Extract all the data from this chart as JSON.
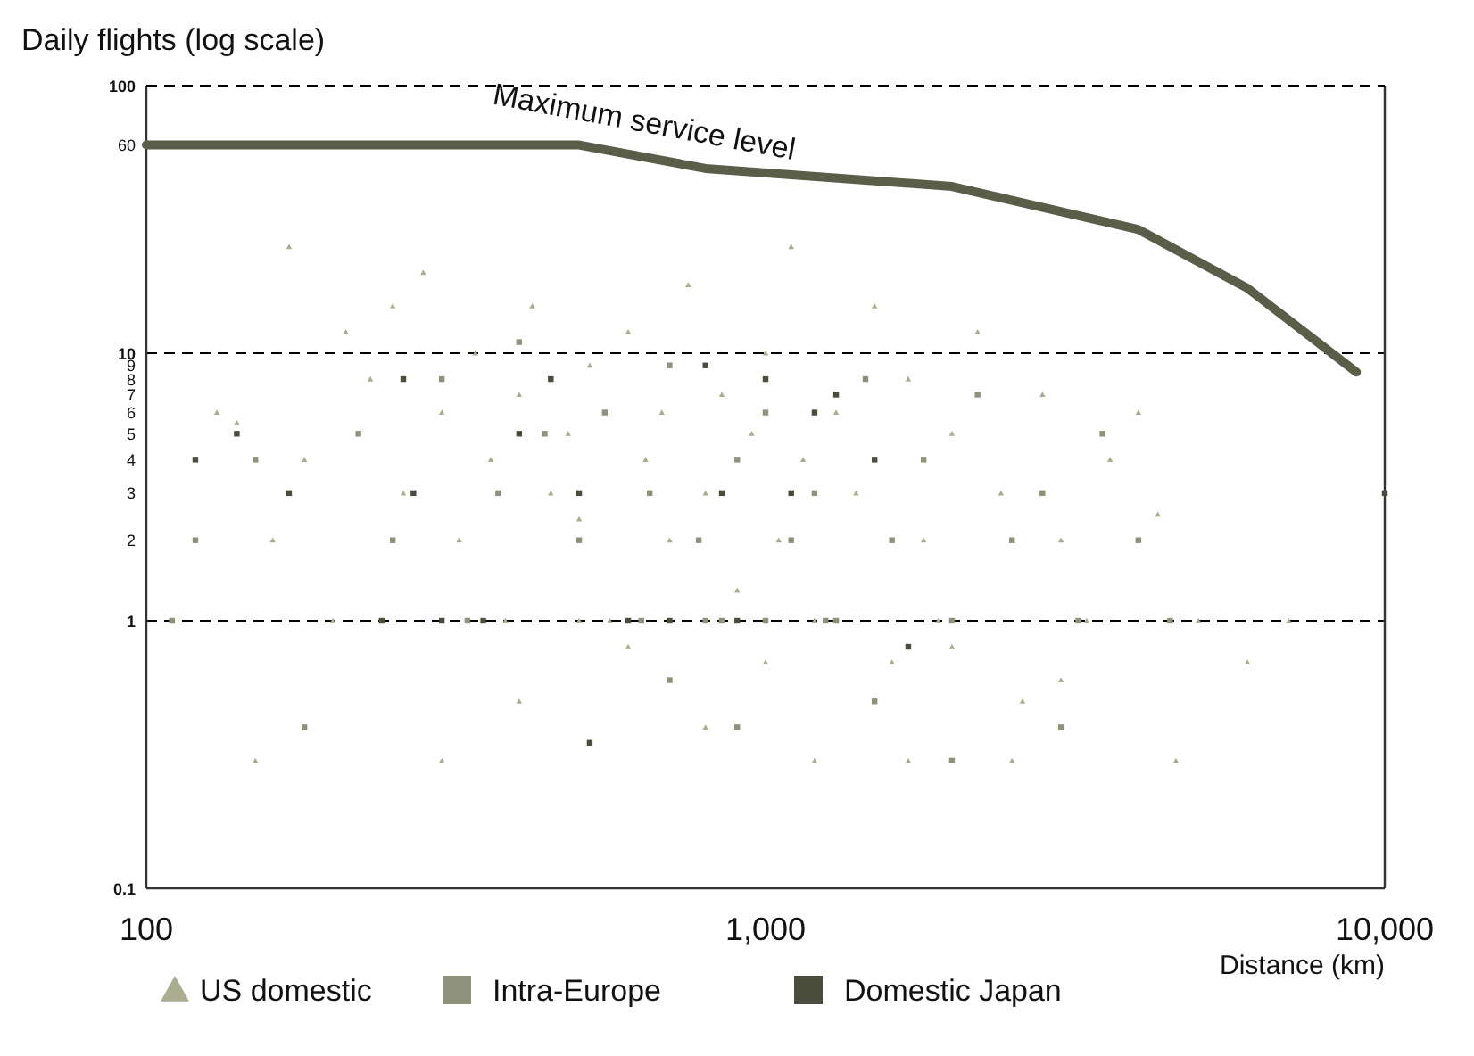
{
  "chart_data": {
    "type": "scatter",
    "ylabel": "Daily flights (log scale)",
    "xlabel": "Distance (km)",
    "log": "xy",
    "xlim": [
      100,
      10000
    ],
    "ylim": [
      0.1,
      100
    ],
    "xticks": [
      100,
      {
        "value": 1000,
        "label": "1,000"
      },
      {
        "value": 10000,
        "label": "10,000"
      }
    ],
    "yticks": [
      0.1,
      1,
      2,
      3,
      4,
      5,
      6,
      7,
      8,
      9,
      10,
      60,
      100
    ],
    "grid": false,
    "legend": "bottom",
    "ref_lines": [
      {
        "axis": "y",
        "value": 10,
        "color": "#000000",
        "line_style": "dashed"
      },
      {
        "axis": "y",
        "value": 1,
        "color": "#000000",
        "line_style": "dashed"
      }
    ],
    "series": [
      {
        "name": "US domestic",
        "marker": "triangle",
        "color": "#a9ac8f",
        "x": [
          130,
          140,
          160,
          170,
          180,
          200,
          210,
          230,
          250,
          260,
          280,
          300,
          320,
          340,
          360,
          380,
          400,
          420,
          450,
          480,
          500,
          520,
          560,
          600,
          640,
          680,
          700,
          750,
          800,
          850,
          900,
          950,
          1000,
          1050,
          1100,
          1150,
          1200,
          1300,
          1400,
          1500,
          1600,
          1700,
          1800,
          1900,
          2000,
          2200,
          2400,
          2600,
          2800,
          3000,
          3300,
          3600,
          4000,
          4300,
          4600,
          5000,
          6000,
          7000,
          1200,
          1700,
          2500,
          400,
          800,
          300,
          150,
          1000,
          2000,
          3000,
          600,
          500
        ],
        "values": [
          6,
          5.5,
          2,
          25,
          4,
          1,
          12,
          8,
          15,
          3,
          20,
          6,
          2,
          10,
          4,
          1,
          7,
          15,
          3,
          5,
          2.4,
          9,
          1,
          12,
          4,
          6,
          2,
          18,
          3,
          7,
          1.3,
          5,
          10,
          2,
          25,
          4,
          1,
          6,
          3,
          15,
          0.7,
          8,
          2,
          1,
          5,
          12,
          3,
          0.5,
          7,
          2,
          1,
          4,
          6,
          2.5,
          0.3,
          1,
          0.7,
          1,
          0.3,
          0.3,
          0.3,
          0.5,
          0.4,
          0.3,
          0.3,
          0.7,
          0.8,
          0.6,
          0.8,
          1
        ]
      },
      {
        "name": "Intra-Europe",
        "marker": "square",
        "color": "#8f927a",
        "x": [
          110,
          120,
          150,
          180,
          220,
          250,
          300,
          330,
          370,
          400,
          440,
          500,
          550,
          630,
          650,
          700,
          780,
          850,
          900,
          1000,
          1100,
          1200,
          1300,
          1450,
          1600,
          1800,
          2000,
          2200,
          2500,
          2800,
          3200,
          3500,
          4000,
          4500,
          1500,
          900,
          700,
          2000,
          3000,
          1000,
          1250,
          800
        ],
        "values": [
          1,
          2,
          4,
          0.4,
          5,
          2,
          8,
          1,
          3,
          11,
          5,
          2,
          6,
          1,
          3,
          9,
          2,
          1,
          4,
          6,
          2,
          3,
          1,
          8,
          2,
          4,
          1,
          7,
          2,
          3,
          1,
          5,
          2,
          1,
          0.5,
          0.4,
          0.6,
          0.3,
          0.4,
          1,
          1,
          1
        ]
      },
      {
        "name": "Domestic Japan",
        "marker": "square",
        "color": "#4b4d3c",
        "x": [
          120,
          140,
          170,
          240,
          260,
          270,
          300,
          350,
          400,
          450,
          500,
          520,
          600,
          700,
          800,
          850,
          900,
          1000,
          1100,
          1200,
          1300,
          1500,
          1700,
          10000
        ],
        "values": [
          4,
          5,
          3,
          1,
          8,
          3,
          1,
          1,
          5,
          8,
          3,
          0.35,
          1,
          1,
          9,
          3,
          1,
          8,
          3,
          6,
          7,
          4,
          0.8,
          3
        ]
      },
      {
        "name": "Maximum service level",
        "type": "line",
        "marker": "none",
        "color": "#5a5e48",
        "x": [
          100,
          500,
          800,
          2000,
          4000,
          6000,
          9000
        ],
        "values": [
          60,
          60,
          49,
          42,
          29,
          17.5,
          8.5
        ]
      }
    ]
  }
}
